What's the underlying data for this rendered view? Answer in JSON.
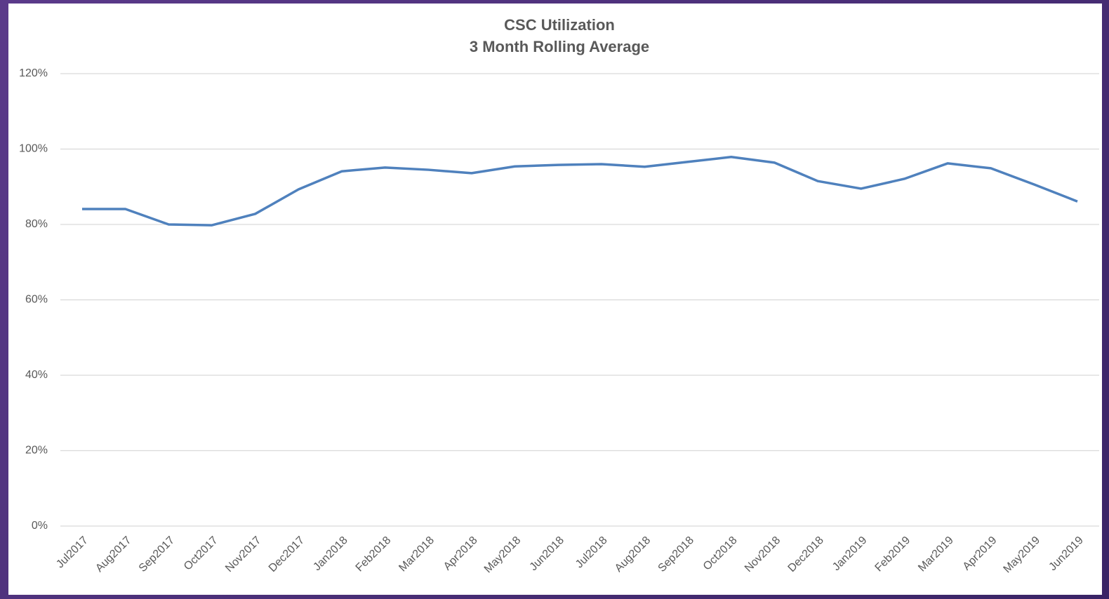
{
  "chart_data": {
    "type": "line",
    "title": "CSC Utilization",
    "subtitle": "3 Month Rolling Average",
    "categories": [
      "Jul2017",
      "Aug2017",
      "Sep2017",
      "Oct2017",
      "Nov2017",
      "Dec2017",
      "Jan2018",
      "Feb2018",
      "Mar2018",
      "Apr2018",
      "May2018",
      "Jun2018",
      "Jul2018",
      "Aug2018",
      "Sep2018",
      "Oct2018",
      "Nov2018",
      "Dec2018",
      "Jan2019",
      "Feb2019",
      "Mar2019",
      "Apr2019",
      "May2019",
      "Jun2019"
    ],
    "series": [
      {
        "name": "CSC Utilization",
        "color": "#4f81bd",
        "values": [
          84.1,
          84.1,
          80.0,
          79.8,
          82.8,
          89.3,
          94.1,
          95.1,
          94.5,
          93.6,
          95.4,
          95.8,
          96.0,
          95.3,
          96.6,
          97.9,
          96.4,
          91.5,
          89.5,
          92.1,
          96.2,
          94.9,
          90.6,
          86.1
        ]
      }
    ],
    "ylim": [
      0,
      120
    ],
    "yticks": [
      {
        "value": 0,
        "label": "0%"
      },
      {
        "value": 20,
        "label": "20%"
      },
      {
        "value": 40,
        "label": "40%"
      },
      {
        "value": 60,
        "label": "60%"
      },
      {
        "value": 80,
        "label": "80%"
      },
      {
        "value": 100,
        "label": "100%"
      },
      {
        "value": 120,
        "label": "120%"
      }
    ],
    "grid": true
  }
}
